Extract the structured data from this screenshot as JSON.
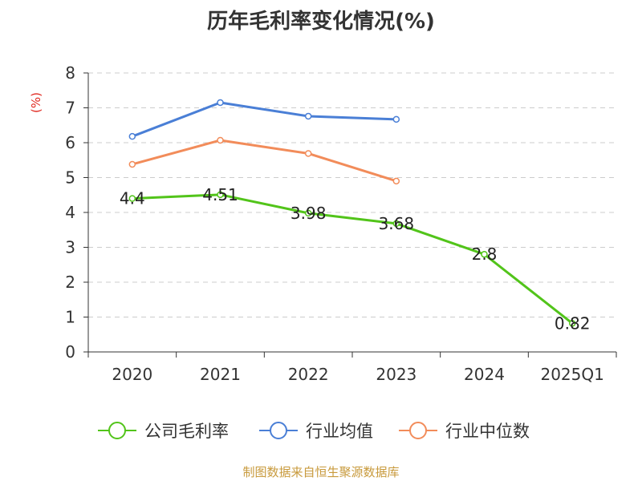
{
  "chart_data": {
    "type": "line",
    "title": "历年毛利率变化情况(%)",
    "ylabel": "(%)",
    "ylim": [
      0,
      8
    ],
    "yticks": [
      0,
      1,
      2,
      3,
      4,
      5,
      6,
      7,
      8
    ],
    "categories": [
      "2020",
      "2021",
      "2022",
      "2023",
      "2024",
      "2025Q1"
    ],
    "grid": true,
    "legend_position": "bottom",
    "series": [
      {
        "name": "公司毛利率",
        "color": "#52c41a",
        "values": [
          4.4,
          4.51,
          3.98,
          3.68,
          2.8,
          0.82
        ],
        "labels": [
          "4.4",
          "4.51",
          "3.98",
          "3.68",
          "2.8",
          "0.82"
        ],
        "show_labels": true
      },
      {
        "name": "行业均值",
        "color": "#4a7fd6",
        "values": [
          6.18,
          7.15,
          6.76,
          6.67,
          null,
          null
        ],
        "show_labels": false
      },
      {
        "name": "行业中位数",
        "color": "#f28c5a",
        "values": [
          5.38,
          6.07,
          5.69,
          4.9,
          null,
          null
        ],
        "show_labels": false
      }
    ]
  },
  "footer": {
    "source": "制图数据来自恒生聚源数据库"
  }
}
